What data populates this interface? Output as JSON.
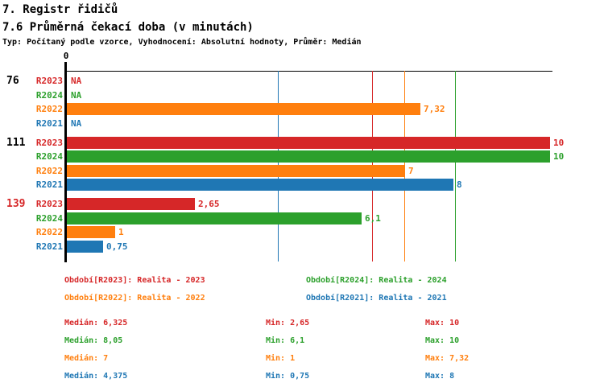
{
  "header": {
    "title": "7. Registr řidičů",
    "subtitle": "7.6 Průměrná čekací doba (v minutách)",
    "meta": "Typ: Počítaný podle vzorce, Vyhodnocení: Absolutní hodnoty, Průměr: Medián"
  },
  "colors": {
    "R2023": "#d62728",
    "R2024": "#2ca02c",
    "R2022": "#ff7f0e",
    "R2021": "#1f77b4",
    "axis": "#000000"
  },
  "chart_data": {
    "type": "bar",
    "orientation": "horizontal",
    "xlabel": "",
    "ylabel": "",
    "axis_zero_label": "0",
    "xlim": [
      0,
      10
    ],
    "series_order": [
      "R2023",
      "R2024",
      "R2022",
      "R2021"
    ],
    "groups": [
      {
        "label": "76",
        "label_color": "#000000",
        "bars": [
          {
            "series": "R2023",
            "value": null,
            "display": "NA"
          },
          {
            "series": "R2024",
            "value": null,
            "display": "NA"
          },
          {
            "series": "R2022",
            "value": 7.32,
            "display": "7,32"
          },
          {
            "series": "R2021",
            "value": null,
            "display": "NA"
          }
        ]
      },
      {
        "label": "111",
        "label_color": "#000000",
        "bars": [
          {
            "series": "R2023",
            "value": 10,
            "display": "10"
          },
          {
            "series": "R2024",
            "value": 10,
            "display": "10"
          },
          {
            "series": "R2022",
            "value": 7,
            "display": "7"
          },
          {
            "series": "R2021",
            "value": 8,
            "display": "8"
          }
        ]
      },
      {
        "label": "139",
        "label_color": "#d62728",
        "bars": [
          {
            "series": "R2023",
            "value": 2.65,
            "display": "2,65"
          },
          {
            "series": "R2024",
            "value": 6.1,
            "display": "6,1"
          },
          {
            "series": "R2022",
            "value": 1,
            "display": "1"
          },
          {
            "series": "R2021",
            "value": 0.75,
            "display": "0,75"
          }
        ]
      }
    ],
    "median_gridlines": [
      {
        "series": "R2023",
        "value": 6.325
      },
      {
        "series": "R2024",
        "value": 8.05
      },
      {
        "series": "R2022",
        "value": 7
      },
      {
        "series": "R2021",
        "value": 4.375
      }
    ]
  },
  "legend": [
    {
      "series": "R2023",
      "text": "Období[R2023]: Realita - 2023"
    },
    {
      "series": "R2024",
      "text": "Období[R2024]: Realita - 2024"
    },
    {
      "series": "R2022",
      "text": "Období[R2022]: Realita - 2022"
    },
    {
      "series": "R2021",
      "text": "Období[R2021]: Realita - 2021"
    }
  ],
  "stats": [
    {
      "series": "R2023",
      "median": "Medián: 6,325",
      "min": "Min: 2,65",
      "max": "Max: 10"
    },
    {
      "series": "R2024",
      "median": "Medián: 8,05",
      "min": "Min: 6,1",
      "max": "Max: 10"
    },
    {
      "series": "R2022",
      "median": "Medián: 7",
      "min": "Min: 1",
      "max": "Max: 7,32"
    },
    {
      "series": "R2021",
      "median": "Medián: 4,375",
      "min": "Min: 0,75",
      "max": "Max: 8"
    }
  ]
}
